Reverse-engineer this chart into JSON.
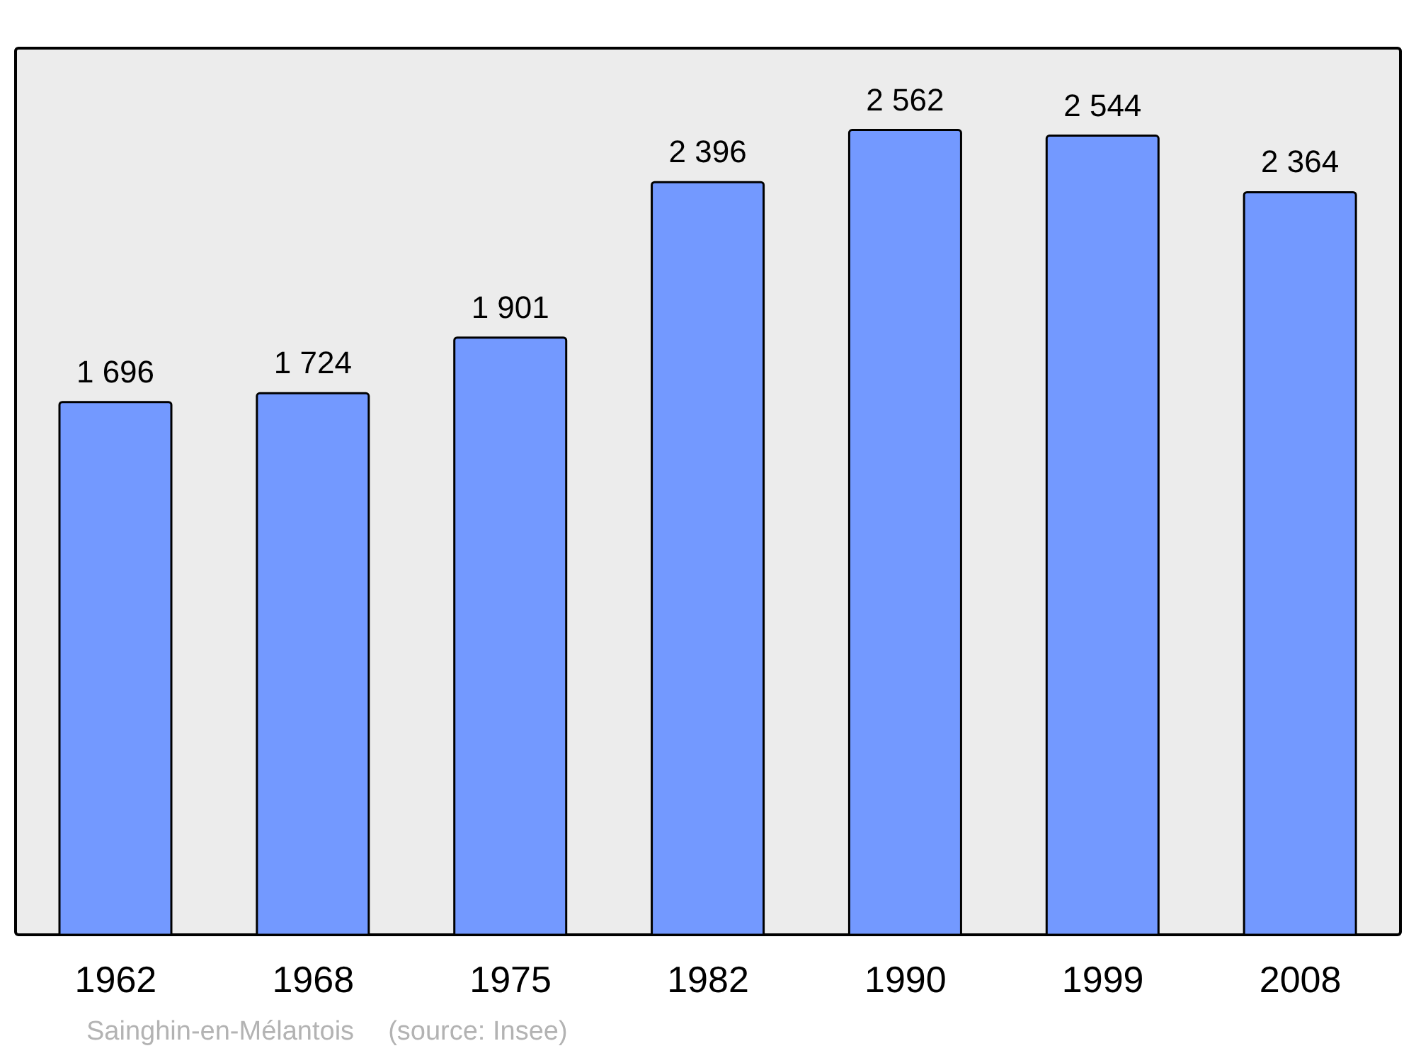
{
  "chart_data": {
    "type": "bar",
    "categories": [
      "1962",
      "1968",
      "1975",
      "1982",
      "1990",
      "1999",
      "2008"
    ],
    "values": [
      1696,
      1724,
      1901,
      2396,
      2562,
      2544,
      2364
    ],
    "value_labels": [
      "1 696",
      "1 724",
      "1 901",
      "2 396",
      "2 562",
      "2 544",
      "2 364"
    ],
    "color": "#7399ff",
    "ylim": [
      0,
      2818
    ],
    "annotations": [
      "Sainghin-en-Mélantois",
      "(source: Insee)"
    ]
  }
}
